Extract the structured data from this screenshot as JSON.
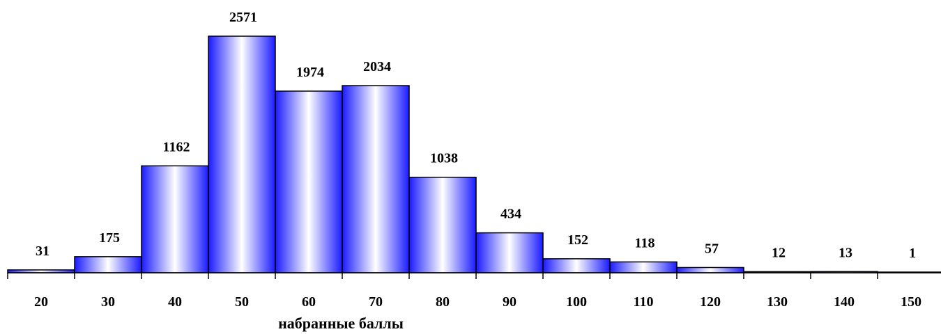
{
  "chart_data": {
    "type": "bar",
    "title": "",
    "xlabel": "набранные баллы",
    "ylabel": "",
    "categories": [
      "20",
      "30",
      "40",
      "50",
      "60",
      "70",
      "80",
      "90",
      "100",
      "110",
      "120",
      "130",
      "140",
      "150"
    ],
    "values": [
      31,
      175,
      1162,
      2571,
      1974,
      2034,
      1038,
      434,
      152,
      118,
      57,
      12,
      13,
      1
    ],
    "ylim": [
      0,
      2571
    ],
    "grid": false,
    "legend": "none",
    "bar_gradient": [
      "#1a1aff",
      "#ffffff",
      "#1a1aff"
    ],
    "bar_stroke": "#000000",
    "axis_color": "#000000"
  }
}
